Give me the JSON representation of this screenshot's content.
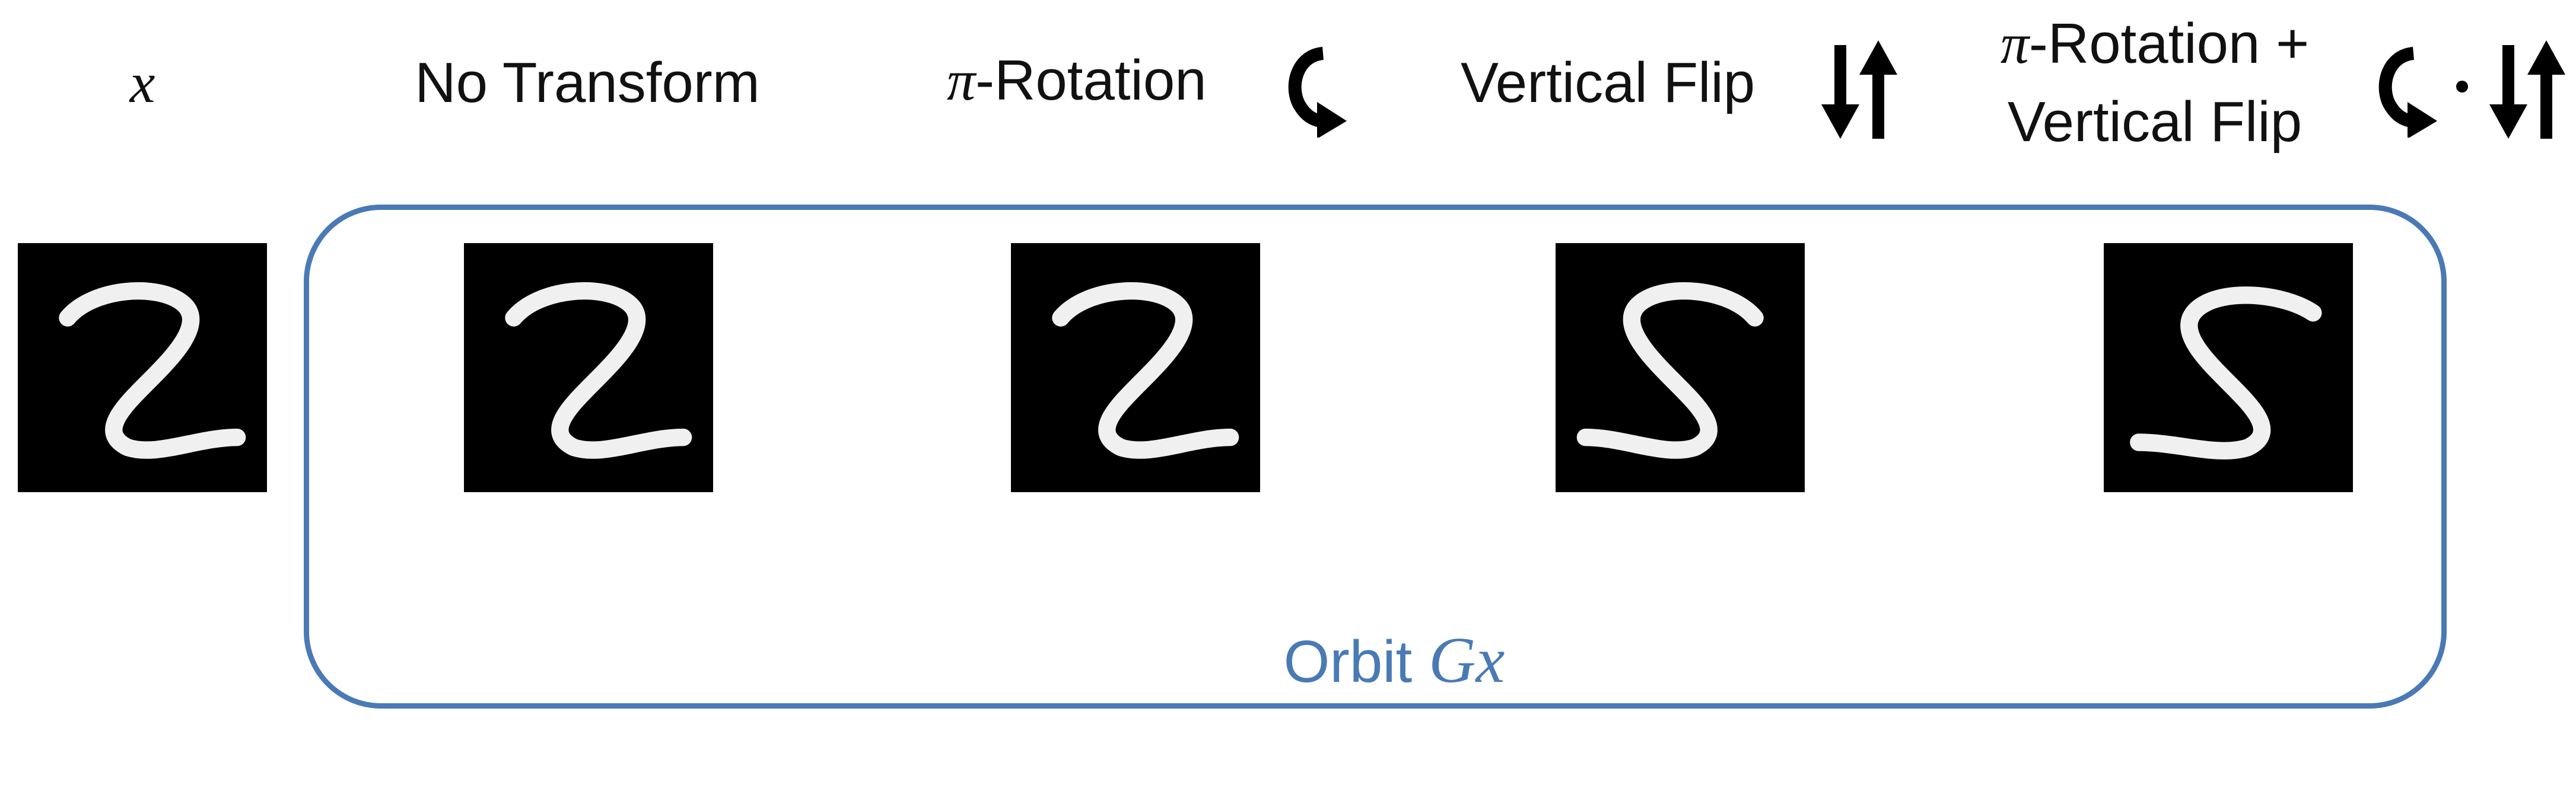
{
  "labels": {
    "x": "x",
    "no_transform": "No Transform",
    "pi": "π",
    "rotation": "-Rotation",
    "vertical_flip": "Vertical Flip",
    "rot_flip_line1_suffix": "-Rotation +",
    "rot_flip_line2": "Vertical Flip"
  },
  "orbit": {
    "text": "Orbit ",
    "symbol": "Gx",
    "color": "#4a7ab5"
  },
  "icons": {
    "rotation": "rotate-clockwise-arrow-icon",
    "flip": "vertical-flip-arrows-icon",
    "compose": "composition-dot"
  },
  "images": [
    {
      "name": "digit-original",
      "depicts": "handwritten-2"
    },
    {
      "name": "digit-no-transform",
      "depicts": "handwritten-2"
    },
    {
      "name": "digit-pi-rotation",
      "depicts": "handwritten-2-rotated"
    },
    {
      "name": "digit-vertical-flip",
      "depicts": "handwritten-2-flipped"
    },
    {
      "name": "digit-rotation-and-flip",
      "depicts": "handwritten-2-rotated-flipped"
    }
  ]
}
